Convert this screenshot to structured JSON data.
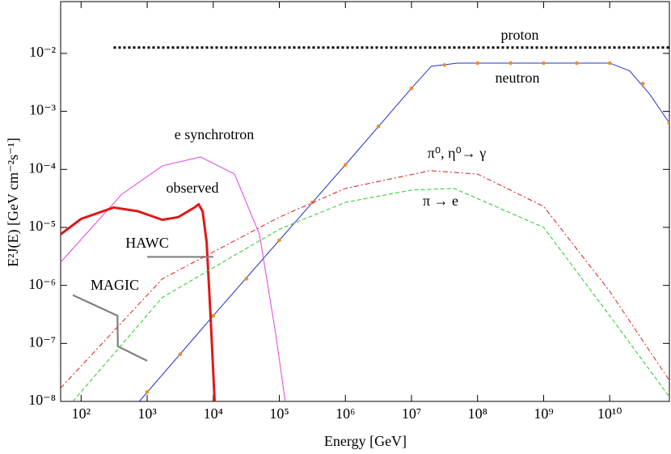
{
  "chart_data": {
    "type": "line",
    "x_label": "Energy [GeV]",
    "y_label": "E²J(E) [GeV cm⁻²s⁻¹]",
    "xscale": "log",
    "yscale": "log",
    "xlim": [
      49,
      80000000000.0
    ],
    "ylim": [
      1e-08,
      0.078
    ],
    "xticks": [
      {
        "value": 100,
        "label": "10²"
      },
      {
        "value": 1000,
        "label": "10³"
      },
      {
        "value": 10000,
        "label": "10⁴"
      },
      {
        "value": 100000,
        "label": "10⁵"
      },
      {
        "value": 1000000,
        "label": "10⁶"
      },
      {
        "value": 10000000,
        "label": "10⁷"
      },
      {
        "value": 100000000,
        "label": "10⁸"
      },
      {
        "value": 1000000000,
        "label": "10⁹"
      },
      {
        "value": 10000000000,
        "label": "10¹⁰"
      }
    ],
    "yticks": [
      {
        "value": 1e-08,
        "label": "10⁻⁸"
      },
      {
        "value": 1e-07,
        "label": "10⁻⁷"
      },
      {
        "value": 1e-06,
        "label": "10⁻⁶"
      },
      {
        "value": 1e-05,
        "label": "10⁻⁵"
      },
      {
        "value": 0.0001,
        "label": "10⁻⁴"
      },
      {
        "value": 0.001,
        "label": "10⁻³"
      },
      {
        "value": 0.01,
        "label": "10⁻²"
      }
    ],
    "series": [
      {
        "name": "proton",
        "color": "#000000",
        "style": "dotted",
        "x": [
          310,
          80000000000.0
        ],
        "values": [
          0.0126,
          0.0126
        ]
      },
      {
        "name": "neutron",
        "color": "#2233cc",
        "style": "solid",
        "x": [
          760,
          10000.0,
          100000.0,
          1000000.0,
          10000000.0,
          20000000.0,
          50000000.0,
          1000000000.0,
          10000000000.0,
          20000000000.0,
          40000000000.0,
          80000000000.0
        ],
        "values": [
          1e-08,
          3e-07,
          6e-06,
          0.00012,
          0.0025,
          0.006,
          0.0068,
          0.0068,
          0.0068,
          0.005,
          0.002,
          0.00063
        ]
      },
      {
        "color": "#f08c28",
        "style": "dots",
        "x": [
          1000,
          3162,
          10000,
          31623,
          100000,
          316228,
          1000000,
          3162278,
          10000000,
          31622777,
          100000000,
          316227766,
          1000000000,
          3162277660,
          10000000000,
          31622776602,
          79432823472
        ],
        "values": [
          1.45e-08,
          6.5e-08,
          3e-07,
          1.3e-06,
          6e-06,
          2.7e-05,
          0.00012,
          0.00055,
          0.0025,
          0.0063,
          0.0068,
          0.0068,
          0.0068,
          0.0068,
          0.0068,
          0.003,
          0.00063
        ]
      },
      {
        "name": "e synchrotron",
        "color": "#e040e0",
        "style": "solid",
        "x": [
          49,
          410,
          1700,
          6400,
          21000,
          50000,
          87000,
          123000
        ],
        "values": [
          2.5e-06,
          3.7e-05,
          0.000115,
          0.000164,
          8.3e-05,
          7.6e-06,
          1.6e-07,
          1e-08
        ]
      },
      {
        "name": "observed",
        "color": "#e01818",
        "style": "thick",
        "x": [
          49,
          100,
          310,
          720,
          1700,
          2950,
          5200,
          6000,
          6900,
          7950,
          9100,
          10500
        ],
        "values": [
          7.6e-06,
          1.4e-05,
          2.2e-05,
          1.9e-05,
          1.35e-05,
          1.5e-05,
          2.2e-05,
          2.5e-05,
          1.9e-05,
          5.5e-06,
          3e-07,
          1e-08
        ]
      },
      {
        "name": "HAWC",
        "color": "#808080",
        "style": "medium",
        "x": [
          1000,
          10000
        ],
        "values": [
          3.1e-06,
          3.1e-06
        ]
      },
      {
        "name": "MAGIC",
        "color": "#808080",
        "style": "medium",
        "x": [
          75,
          355,
          360,
          1000
        ],
        "values": [
          6.8e-07,
          3e-07,
          8.9e-08,
          5e-08
        ]
      },
      {
        "name": "π⁰, η⁰→ γ",
        "color": "#e01818",
        "style": "dashdot",
        "x": [
          49,
          1700,
          100000,
          1000000,
          19000000,
          100000000,
          1000000000,
          10000000000,
          80000000000.0
        ],
        "values": [
          1.7e-08,
          1.3e-06,
          1.5e-05,
          4.7e-05,
          9.5e-05,
          8.3e-05,
          2.3e-05,
          7.9e-07,
          2.3e-08
        ]
      },
      {
        "name": "π → e",
        "color": "#22cc22",
        "style": "dashed",
        "x": [
          75,
          1700,
          100000,
          1000000,
          10000000,
          44000000,
          1000000000,
          10000000000,
          80000000000.0
        ],
        "values": [
          1e-08,
          6.2e-07,
          9.3e-06,
          2.7e-05,
          4.4e-05,
          4.7e-05,
          1e-05,
          3e-07,
          1.2e-08
        ]
      }
    ]
  }
}
